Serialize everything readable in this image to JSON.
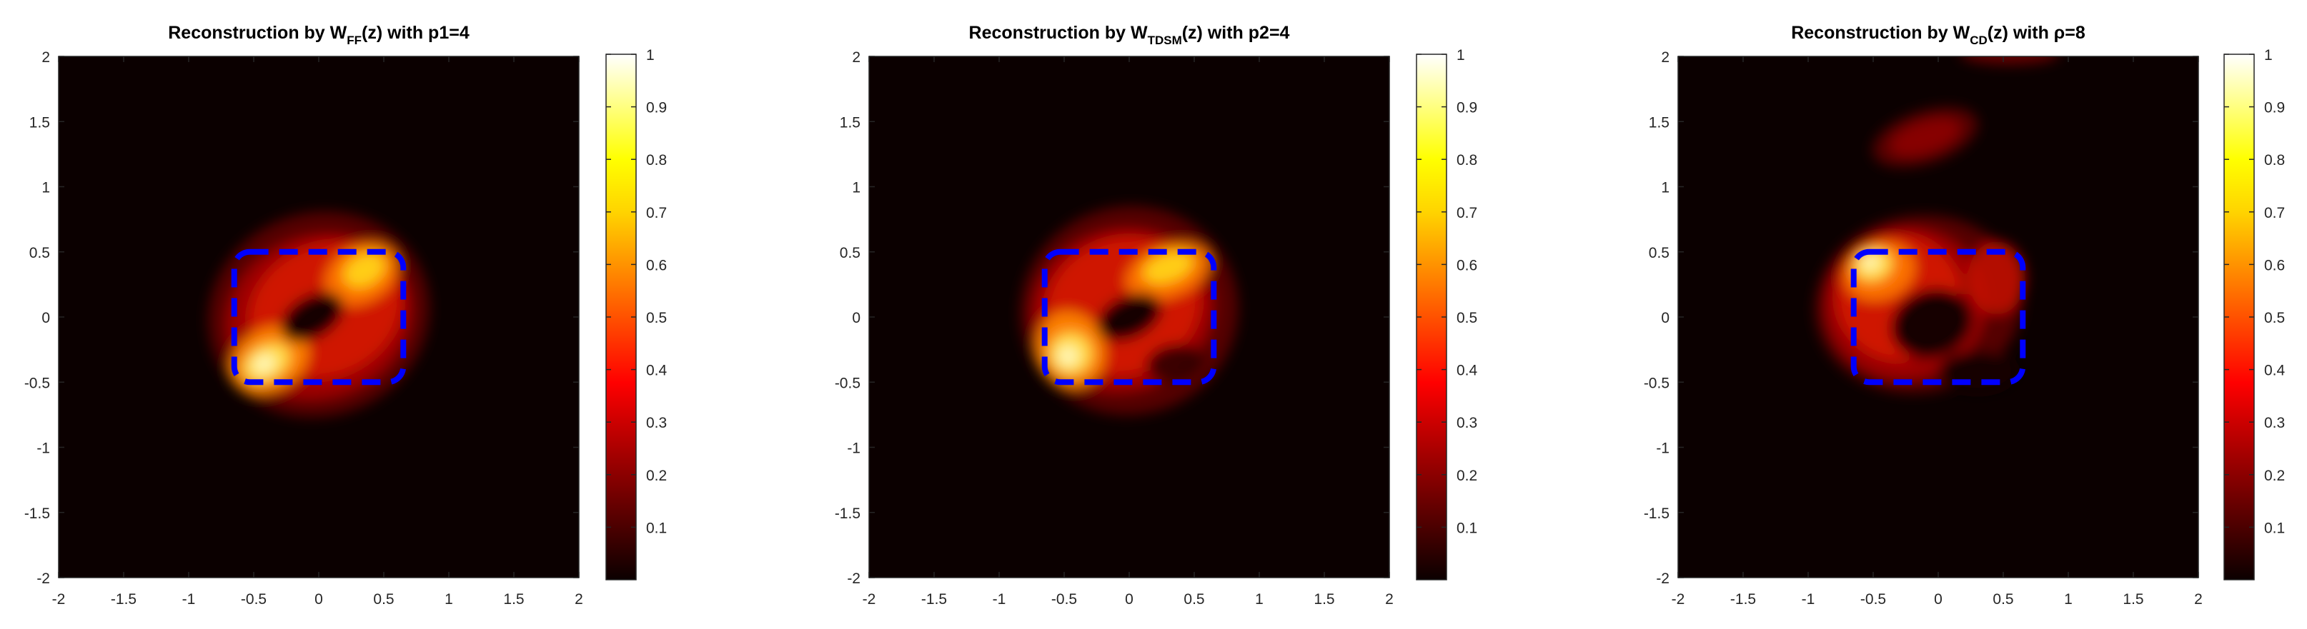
{
  "chart_data": [
    {
      "type": "heatmap",
      "title": {
        "prefix": "Reconstruction by W",
        "subscript": "FF",
        "suffix": "(z) with p1=4"
      },
      "xlabel": "",
      "ylabel": "",
      "xlim": [
        -2,
        2
      ],
      "ylim": [
        -2,
        2
      ],
      "x_ticks": [
        "-2",
        "-1.5",
        "-1",
        "-0.5",
        "0",
        "0.5",
        "1",
        "1.5",
        "2"
      ],
      "y_ticks": [
        "-2",
        "-1.5",
        "-1",
        "-0.5",
        "0",
        "0.5",
        "1",
        "1.5",
        "2"
      ],
      "colorbar": {
        "range": [
          0,
          1
        ],
        "ticks": [
          "0.1",
          "0.2",
          "0.3",
          "0.4",
          "0.5",
          "0.6",
          "0.7",
          "0.8",
          "0.9",
          "1"
        ],
        "colormap": "hot"
      },
      "true_shape": {
        "type": "rounded-square",
        "x_range": [
          -0.65,
          0.65
        ],
        "y_range": [
          -0.5,
          0.5
        ],
        "color": "#0000ff",
        "style": "dashed"
      },
      "field_peaks": [
        {
          "x": 0.35,
          "y": 0.35,
          "intensity": 0.93
        },
        {
          "x": -0.4,
          "y": -0.35,
          "intensity": 1.0
        }
      ]
    },
    {
      "type": "heatmap",
      "title": {
        "prefix": "Reconstruction by W",
        "subscript": "TDSM",
        "suffix": "(z) with p2=4"
      },
      "xlabel": "",
      "ylabel": "",
      "xlim": [
        -2,
        2
      ],
      "ylim": [
        -2,
        2
      ],
      "x_ticks": [
        "-2",
        "-1.5",
        "-1",
        "-0.5",
        "0",
        "0.5",
        "1",
        "1.5",
        "2"
      ],
      "y_ticks": [
        "-2",
        "-1.5",
        "-1",
        "-0.5",
        "0",
        "0.5",
        "1",
        "1.5",
        "2"
      ],
      "colorbar": {
        "range": [
          0,
          1
        ],
        "ticks": [
          "0.1",
          "0.2",
          "0.3",
          "0.4",
          "0.5",
          "0.6",
          "0.7",
          "0.8",
          "0.9",
          "1"
        ],
        "colormap": "hot"
      },
      "true_shape": {
        "type": "rounded-square",
        "x_range": [
          -0.65,
          0.65
        ],
        "y_range": [
          -0.5,
          0.5
        ],
        "color": "#0000ff",
        "style": "dashed"
      },
      "field_peaks": [
        {
          "x": 0.35,
          "y": 0.35,
          "intensity": 0.88
        },
        {
          "x": -0.45,
          "y": -0.3,
          "intensity": 1.0
        }
      ]
    },
    {
      "type": "heatmap",
      "title": {
        "prefix": "Reconstruction by W",
        "subscript": "CD",
        "suffix": "(z) with ρ=8"
      },
      "xlabel": "",
      "ylabel": "",
      "xlim": [
        -2,
        2
      ],
      "ylim": [
        -2,
        2
      ],
      "x_ticks": [
        "-2",
        "-1.5",
        "-1",
        "-0.5",
        "0",
        "0.5",
        "1",
        "1.5",
        "2"
      ],
      "y_ticks": [
        "-2",
        "-1.5",
        "-1",
        "-0.5",
        "0",
        "0.5",
        "1",
        "1.5",
        "2"
      ],
      "colorbar": {
        "range": [
          0,
          1
        ],
        "ticks": [
          "0.1",
          "0.2",
          "0.3",
          "0.4",
          "0.5",
          "0.6",
          "0.7",
          "0.8",
          "0.9",
          "1"
        ],
        "colormap": "hot"
      },
      "true_shape": {
        "type": "rounded-square",
        "x_range": [
          -0.65,
          0.65
        ],
        "y_range": [
          -0.5,
          0.5
        ],
        "color": "#0000ff",
        "style": "dashed"
      },
      "field_peaks": [
        {
          "x": -0.5,
          "y": 0.35,
          "intensity": 1.0
        },
        {
          "x": -0.1,
          "y": 1.4,
          "intensity": 0.35
        },
        {
          "x": 0.55,
          "y": 2.0,
          "intensity": 0.3
        }
      ]
    }
  ]
}
